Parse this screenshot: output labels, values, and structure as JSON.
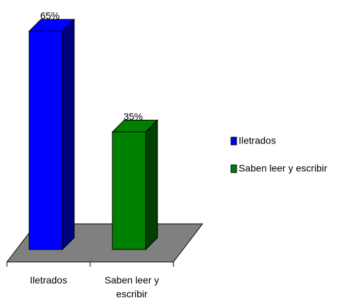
{
  "chart_data": {
    "type": "bar3d",
    "categories": [
      "Iletrados",
      "Saben leer y escribir"
    ],
    "values": [
      65,
      35
    ],
    "value_labels": [
      "65%",
      "35%"
    ],
    "colors": [
      "#0000ff",
      "#008000"
    ],
    "legend": "right"
  }
}
